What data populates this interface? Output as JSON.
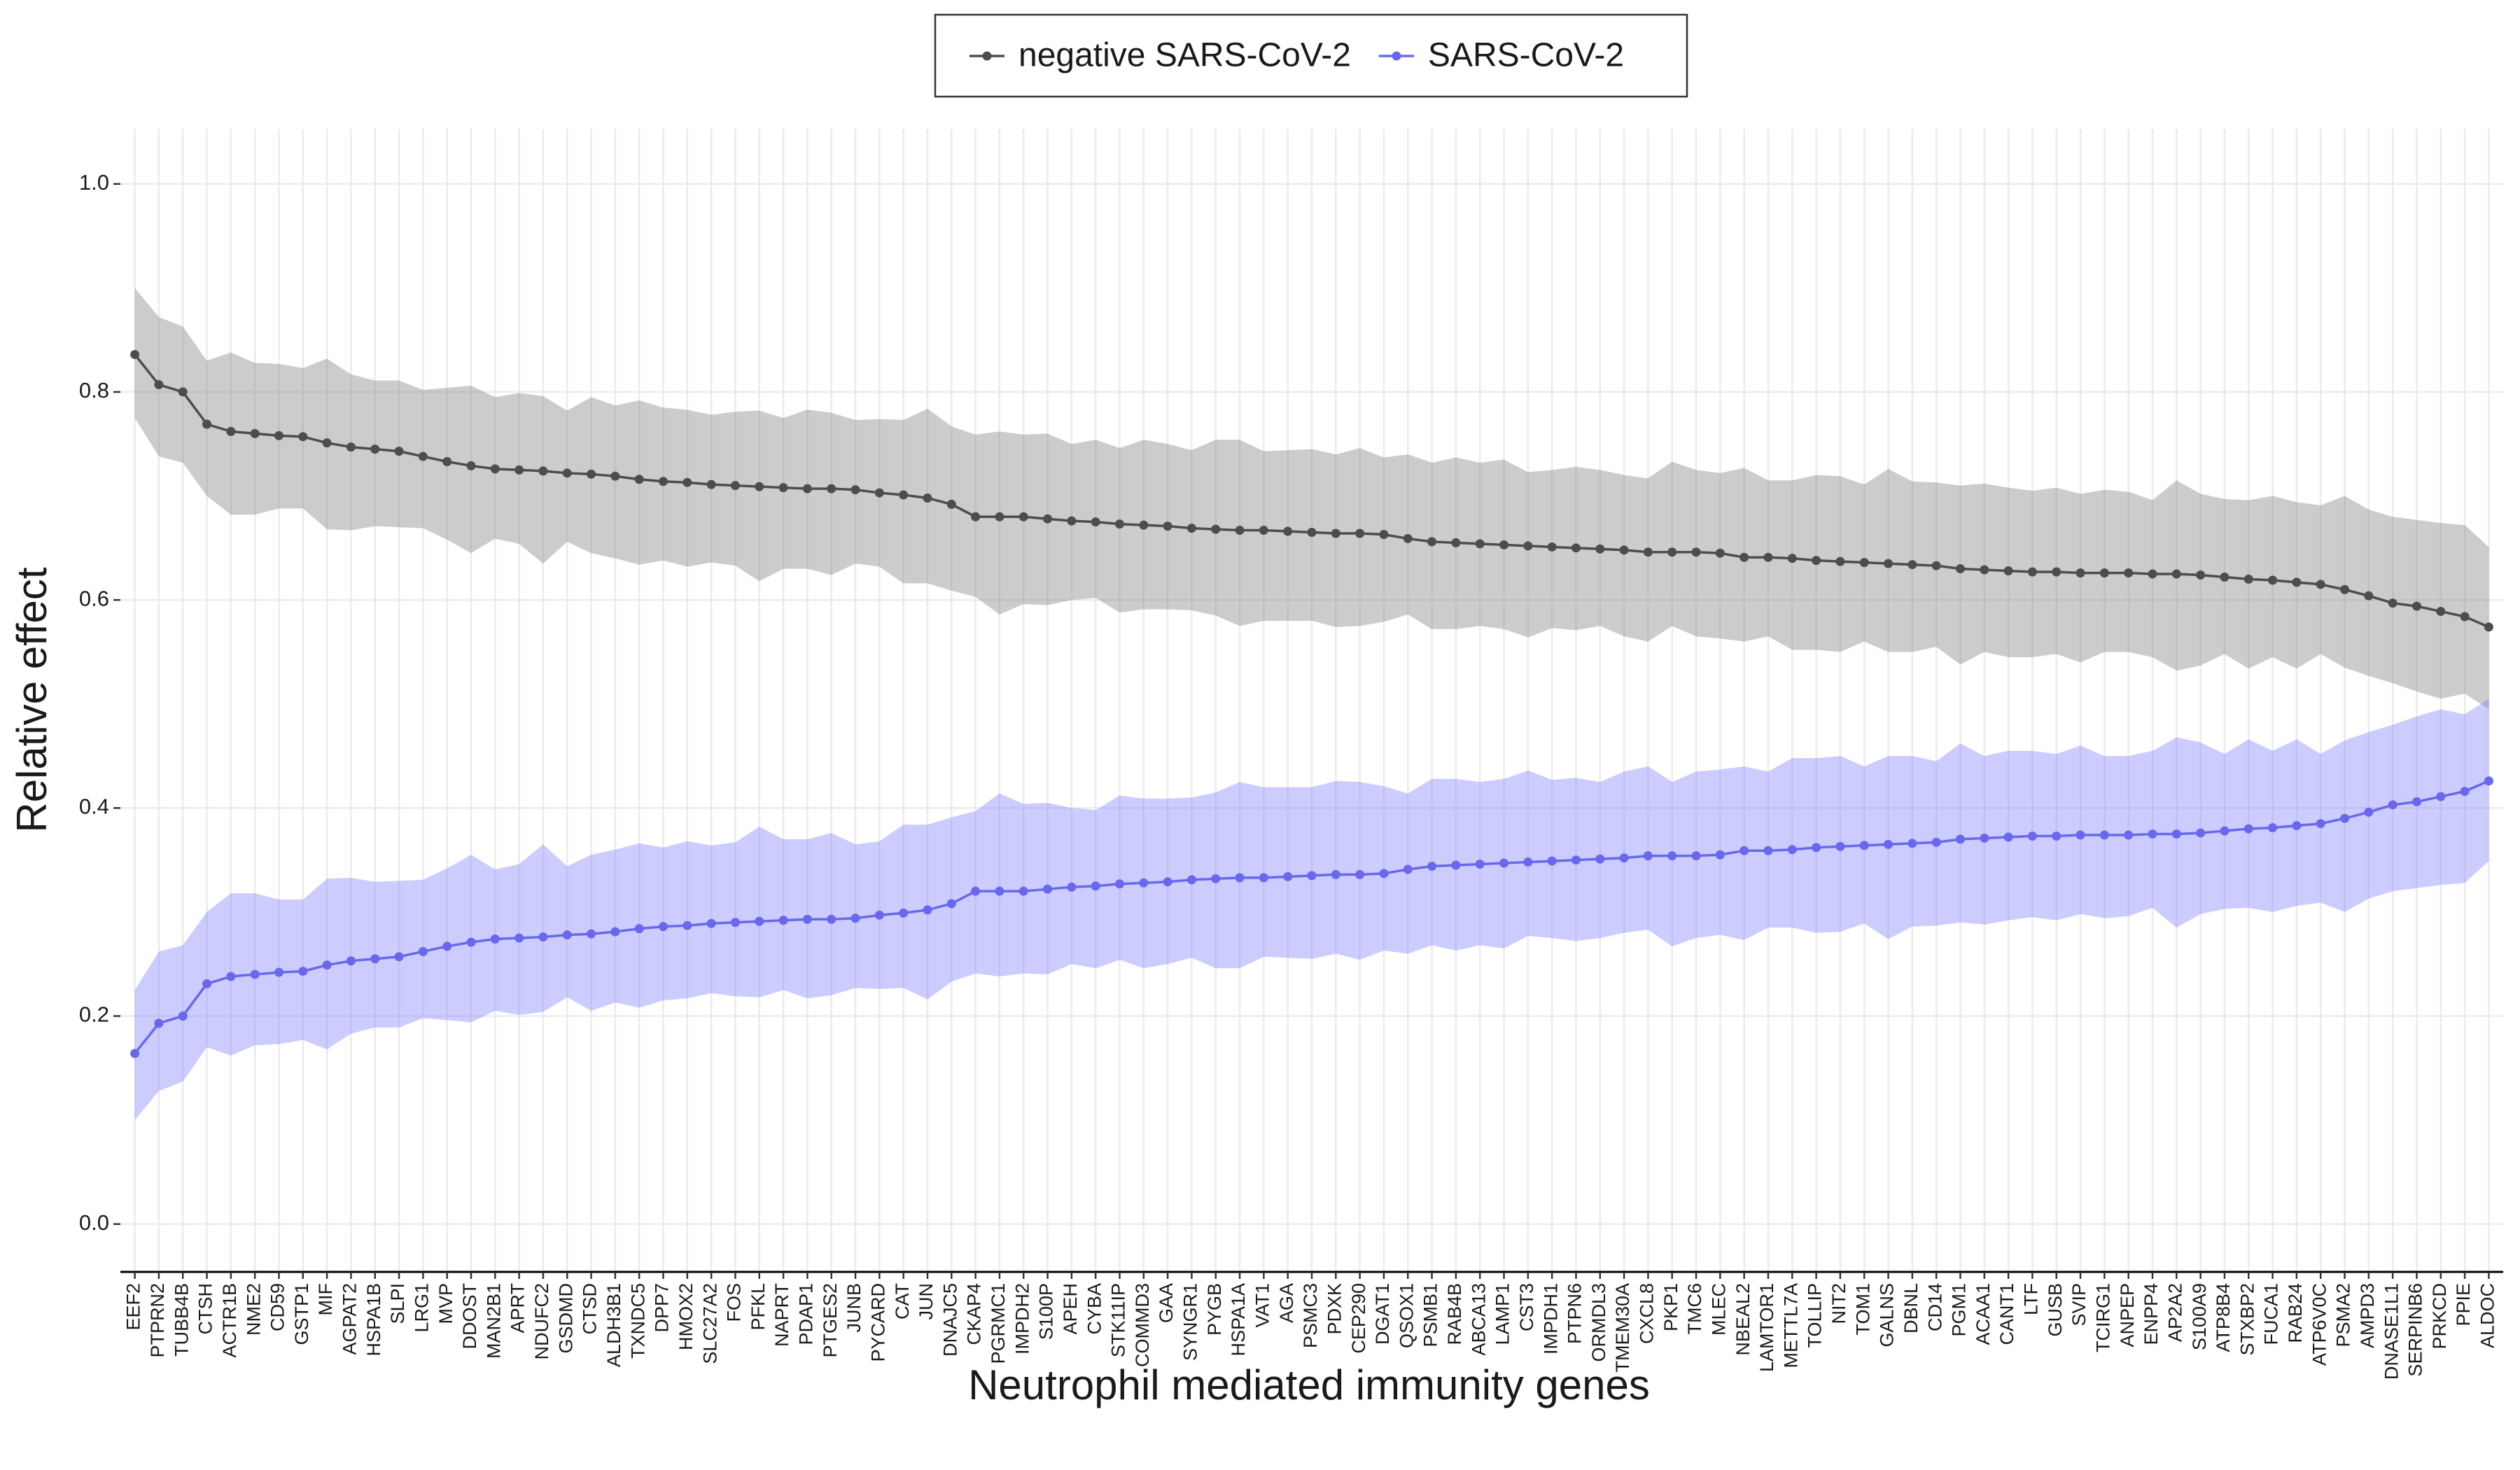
{
  "chart_data": {
    "type": "line",
    "x_label": "Neutrophil mediated immunity genes",
    "y_label": "Relative effect",
    "categories": [
      "EEF2",
      "PTPRN2",
      "TUBB4B",
      "CTSH",
      "ACTR1B",
      "NME2",
      "CD59",
      "GSTP1",
      "MIF",
      "AGPAT2",
      "HSPA1B",
      "SLPI",
      "LRG1",
      "MVP",
      "DDOST",
      "MAN2B1",
      "APRT",
      "NDUFC2",
      "GSDMD",
      "CTSD",
      "ALDH3B1",
      "TXNDC5",
      "DPP7",
      "HMOX2",
      "SLC27A2",
      "FOS",
      "PFKL",
      "NAPRT",
      "PDAP1",
      "PTGES2",
      "JUNB",
      "PYCARD",
      "CAT",
      "JUN",
      "DNAJC5",
      "CKAP4",
      "PGRMC1",
      "IMPDH2",
      "S100P",
      "APEH",
      "CYBA",
      "STK11IP",
      "COMMD3",
      "GAA",
      "SYNGR1",
      "PYGB",
      "HSPA1A",
      "VAT1",
      "AGA",
      "PSMC3",
      "PDXK",
      "CEP290",
      "DGAT1",
      "QSOX1",
      "PSMB1",
      "RAB4B",
      "ABCA13",
      "LAMP1",
      "CST3",
      "IMPDH1",
      "PTPN6",
      "ORMDL3",
      "TMEM30A",
      "CXCL8",
      "PKP1",
      "TMC6",
      "MLEC",
      "NBEAL2",
      "LAMTOR1",
      "METTL7A",
      "TOLLIP",
      "NIT2",
      "TOM1",
      "GALNS",
      "DBNL",
      "CD14",
      "PGM1",
      "ACAA1",
      "CANT1",
      "LTF",
      "GUSB",
      "SVIP",
      "TCIRG1",
      "ANPEP",
      "ENPP4",
      "AP2A2",
      "S100A9",
      "ATP8B4",
      "STXBP2",
      "FUCA1",
      "RAB24",
      "ATP6V0C",
      "PSMA2",
      "AMPD3",
      "DNASE1L1",
      "SERPINB6",
      "PRKCD",
      "PPIE",
      "ALDOC"
    ],
    "series": [
      {
        "name": "negative SARS-CoV-2",
        "color": "#4d4d4d",
        "ribbon_color": "#808080",
        "values": [
          0.836,
          0.807,
          0.8,
          0.769,
          0.762,
          0.76,
          0.758,
          0.757,
          0.751,
          0.747,
          0.745,
          0.743,
          0.738,
          0.733,
          0.729,
          0.726,
          0.725,
          0.724,
          0.722,
          0.721,
          0.719,
          0.716,
          0.714,
          0.713,
          0.711,
          0.71,
          0.709,
          0.708,
          0.707,
          0.707,
          0.706,
          0.703,
          0.701,
          0.698,
          0.692,
          0.68,
          0.68,
          0.68,
          0.678,
          0.676,
          0.675,
          0.673,
          0.672,
          0.671,
          0.669,
          0.668,
          0.667,
          0.667,
          0.666,
          0.665,
          0.664,
          0.664,
          0.663,
          0.659,
          0.656,
          0.655,
          0.654,
          0.653,
          0.652,
          0.651,
          0.65,
          0.649,
          0.648,
          0.646,
          0.646,
          0.646,
          0.645,
          0.641,
          0.641,
          0.64,
          0.638,
          0.637,
          0.636,
          0.635,
          0.634,
          0.633,
          0.63,
          0.629,
          0.628,
          0.627,
          0.627,
          0.626,
          0.626,
          0.626,
          0.625,
          0.625,
          0.624,
          0.622,
          0.62,
          0.619,
          0.617,
          0.615,
          0.61,
          0.604,
          0.597,
          0.594,
          0.589,
          0.584,
          0.574
        ],
        "lower": [
          0.775,
          0.738,
          0.732,
          0.7,
          0.682,
          0.682,
          0.688,
          0.688,
          0.668,
          0.667,
          0.671,
          0.67,
          0.669,
          0.658,
          0.645,
          0.659,
          0.654,
          0.635,
          0.656,
          0.645,
          0.64,
          0.634,
          0.638,
          0.632,
          0.636,
          0.633,
          0.618,
          0.63,
          0.63,
          0.624,
          0.635,
          0.632,
          0.616,
          0.616,
          0.609,
          0.603,
          0.586,
          0.596,
          0.595,
          0.6,
          0.602,
          0.588,
          0.591,
          0.591,
          0.59,
          0.585,
          0.575,
          0.58,
          0.58,
          0.58,
          0.574,
          0.575,
          0.579,
          0.586,
          0.572,
          0.572,
          0.575,
          0.572,
          0.564,
          0.573,
          0.571,
          0.575,
          0.565,
          0.56,
          0.575,
          0.565,
          0.563,
          0.56,
          0.565,
          0.552,
          0.552,
          0.55,
          0.56,
          0.55,
          0.55,
          0.555,
          0.538,
          0.55,
          0.545,
          0.545,
          0.548,
          0.54,
          0.55,
          0.55,
          0.545,
          0.532,
          0.537,
          0.548,
          0.534,
          0.545,
          0.534,
          0.548,
          0.535,
          0.527,
          0.52,
          0.512,
          0.505,
          0.51,
          0.495
        ],
        "upper": [
          0.9,
          0.872,
          0.863,
          0.83,
          0.838,
          0.828,
          0.827,
          0.823,
          0.832,
          0.817,
          0.811,
          0.811,
          0.802,
          0.804,
          0.806,
          0.795,
          0.799,
          0.796,
          0.782,
          0.795,
          0.787,
          0.792,
          0.785,
          0.783,
          0.778,
          0.781,
          0.782,
          0.775,
          0.783,
          0.78,
          0.773,
          0.774,
          0.773,
          0.784,
          0.767,
          0.759,
          0.762,
          0.759,
          0.76,
          0.75,
          0.754,
          0.746,
          0.754,
          0.75,
          0.744,
          0.754,
          0.754,
          0.743,
          0.744,
          0.745,
          0.74,
          0.746,
          0.737,
          0.74,
          0.732,
          0.737,
          0.732,
          0.735,
          0.723,
          0.725,
          0.728,
          0.725,
          0.72,
          0.717,
          0.733,
          0.725,
          0.722,
          0.727,
          0.715,
          0.715,
          0.72,
          0.719,
          0.711,
          0.726,
          0.714,
          0.713,
          0.71,
          0.712,
          0.708,
          0.705,
          0.708,
          0.702,
          0.706,
          0.704,
          0.696,
          0.715,
          0.702,
          0.697,
          0.696,
          0.7,
          0.694,
          0.691,
          0.7,
          0.687,
          0.68,
          0.677,
          0.674,
          0.672,
          0.651
        ]
      },
      {
        "name": "SARS-CoV-2",
        "color": "#6868ee",
        "ribbon_color": "#8080ff",
        "values": [
          0.164,
          0.193,
          0.2,
          0.231,
          0.238,
          0.24,
          0.242,
          0.243,
          0.249,
          0.253,
          0.255,
          0.257,
          0.262,
          0.267,
          0.271,
          0.274,
          0.275,
          0.276,
          0.278,
          0.279,
          0.281,
          0.284,
          0.286,
          0.287,
          0.289,
          0.29,
          0.291,
          0.292,
          0.293,
          0.293,
          0.294,
          0.297,
          0.299,
          0.302,
          0.308,
          0.32,
          0.32,
          0.32,
          0.322,
          0.324,
          0.325,
          0.327,
          0.328,
          0.329,
          0.331,
          0.332,
          0.333,
          0.333,
          0.334,
          0.335,
          0.336,
          0.336,
          0.337,
          0.341,
          0.344,
          0.345,
          0.346,
          0.347,
          0.348,
          0.349,
          0.35,
          0.351,
          0.352,
          0.354,
          0.354,
          0.354,
          0.355,
          0.359,
          0.359,
          0.36,
          0.362,
          0.363,
          0.364,
          0.365,
          0.366,
          0.367,
          0.37,
          0.371,
          0.372,
          0.373,
          0.373,
          0.374,
          0.374,
          0.374,
          0.375,
          0.375,
          0.376,
          0.378,
          0.38,
          0.381,
          0.383,
          0.385,
          0.39,
          0.396,
          0.403,
          0.406,
          0.411,
          0.416,
          0.426
        ],
        "lower": [
          0.1,
          0.128,
          0.137,
          0.17,
          0.162,
          0.172,
          0.173,
          0.177,
          0.168,
          0.183,
          0.189,
          0.189,
          0.198,
          0.196,
          0.194,
          0.205,
          0.201,
          0.204,
          0.218,
          0.205,
          0.213,
          0.208,
          0.215,
          0.217,
          0.222,
          0.219,
          0.218,
          0.225,
          0.217,
          0.22,
          0.227,
          0.226,
          0.227,
          0.216,
          0.233,
          0.241,
          0.238,
          0.241,
          0.24,
          0.25,
          0.246,
          0.254,
          0.246,
          0.25,
          0.256,
          0.246,
          0.246,
          0.257,
          0.256,
          0.255,
          0.26,
          0.254,
          0.263,
          0.26,
          0.268,
          0.263,
          0.268,
          0.265,
          0.277,
          0.275,
          0.272,
          0.275,
          0.28,
          0.283,
          0.267,
          0.275,
          0.278,
          0.273,
          0.285,
          0.285,
          0.28,
          0.281,
          0.289,
          0.274,
          0.286,
          0.287,
          0.29,
          0.288,
          0.292,
          0.295,
          0.292,
          0.298,
          0.294,
          0.296,
          0.304,
          0.285,
          0.298,
          0.303,
          0.304,
          0.3,
          0.306,
          0.309,
          0.3,
          0.313,
          0.32,
          0.323,
          0.326,
          0.328,
          0.349
        ],
        "upper": [
          0.225,
          0.262,
          0.268,
          0.3,
          0.318,
          0.318,
          0.312,
          0.312,
          0.332,
          0.333,
          0.329,
          0.33,
          0.331,
          0.342,
          0.355,
          0.341,
          0.346,
          0.365,
          0.344,
          0.355,
          0.36,
          0.366,
          0.362,
          0.368,
          0.364,
          0.367,
          0.382,
          0.37,
          0.37,
          0.376,
          0.365,
          0.368,
          0.384,
          0.384,
          0.391,
          0.397,
          0.414,
          0.404,
          0.405,
          0.4,
          0.398,
          0.412,
          0.409,
          0.409,
          0.41,
          0.415,
          0.425,
          0.42,
          0.42,
          0.42,
          0.426,
          0.425,
          0.421,
          0.414,
          0.428,
          0.428,
          0.425,
          0.428,
          0.436,
          0.427,
          0.429,
          0.425,
          0.435,
          0.44,
          0.425,
          0.435,
          0.437,
          0.44,
          0.435,
          0.448,
          0.448,
          0.45,
          0.44,
          0.45,
          0.45,
          0.445,
          0.462,
          0.45,
          0.455,
          0.455,
          0.452,
          0.46,
          0.45,
          0.45,
          0.455,
          0.468,
          0.463,
          0.452,
          0.466,
          0.455,
          0.466,
          0.452,
          0.465,
          0.473,
          0.48,
          0.488,
          0.495,
          0.49,
          0.505
        ]
      }
    ],
    "ylim": [
      -0.046,
      1.053
    ],
    "yticks": [
      {
        "value": 0,
        "label": "0.0"
      },
      0.2,
      0.4,
      0.6,
      0.8,
      {
        "value": 1,
        "label": "1.0"
      }
    ],
    "grid": true,
    "legend": "top"
  }
}
